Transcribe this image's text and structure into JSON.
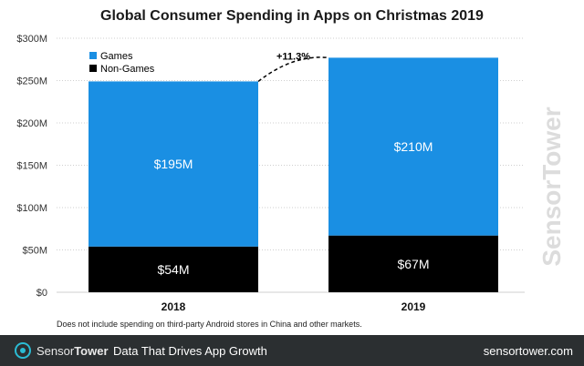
{
  "chart_data": {
    "type": "bar",
    "stacked": true,
    "title": "Global Consumer Spending in Apps on Christmas 2019",
    "categories": [
      "2018",
      "2019"
    ],
    "series": [
      {
        "name": "Non-Games",
        "values": [
          54,
          67
        ],
        "labels": [
          "$54M",
          "$67M"
        ],
        "color": "#000000",
        "label_color": "#ffffff"
      },
      {
        "name": "Games",
        "values": [
          195,
          210
        ],
        "labels": [
          "$195M",
          "$210M"
        ],
        "color": "#1a8fe3",
        "label_color": "#ffffff"
      }
    ],
    "ylim": [
      0,
      300
    ],
    "yticks": [
      0,
      50,
      100,
      150,
      200,
      250,
      300
    ],
    "ytick_labels": [
      "$0",
      "$50M",
      "$100M",
      "$150M",
      "$200M",
      "$250M",
      "$300M"
    ],
    "grid": true,
    "legend_position": "top-left",
    "growth_annotation": "+11.3%"
  },
  "footnote": "Does not include spending on third-party Android stores in China and other markets.",
  "footer": {
    "brand_light": "Sensor",
    "brand_bold": "Tower",
    "tagline": "Data That Drives App Growth",
    "site": "sensortower.com",
    "logo_color": "#2bbcd4"
  },
  "watermark": "SensorTower"
}
